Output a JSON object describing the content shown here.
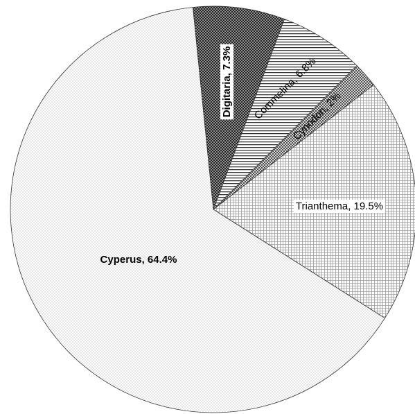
{
  "chart_data": {
    "type": "pie",
    "categories": [
      "Digitaria",
      "Commelina",
      "Cynodon",
      "Trianthema",
      "Cyperus"
    ],
    "values": [
      7.3,
      6.8,
      2,
      19.5,
      64.4
    ],
    "value_labels": [
      "7.3%",
      "6.8%",
      "2%",
      "19.5%",
      "64.4%"
    ],
    "label_separator": ", "
  }
}
